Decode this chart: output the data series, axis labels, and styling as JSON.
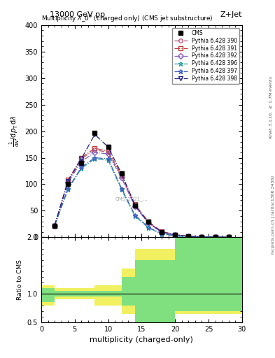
{
  "title_top": "13000 GeV pp",
  "title_right": "Z+Jet",
  "plot_title": "Multiplicity $\\lambda\\_0^0$ (charged only) (CMS jet substructure)",
  "xlabel": "multiplicity (charged-only)",
  "ylabel_main": "$\\frac{1}{\\mathrm{d}N} / \\mathrm{d}p_\\mathrm{T} \\mathrm{d}\\lambda$",
  "ylabel_ratio": "Ratio to CMS",
  "right_label1": "Rivet 3.1.10, $\\geq$ 1.7M events",
  "right_label2": "mcplots.cern.ch | [arXiv:1306.3436]",
  "watermark": "CMS_2021_...",
  "cms_label": "CMS",
  "xlim": [
    0,
    30
  ],
  "ylim_main": [
    0,
    400
  ],
  "ylim_ratio": [
    0.5,
    2.0
  ],
  "x_cms": [
    2,
    4,
    6,
    8,
    10,
    12,
    14,
    16,
    18,
    20,
    22,
    24,
    26,
    28
  ],
  "y_cms": [
    22,
    100,
    140,
    197,
    170,
    120,
    60,
    30,
    10,
    5,
    2,
    1,
    0.5,
    0.2
  ],
  "series": [
    {
      "label": "Pythia 6.428 390",
      "color": "#c06080",
      "marker": "o",
      "linestyle": "-.",
      "x": [
        2,
        4,
        6,
        8,
        10,
        12,
        14,
        16,
        18,
        20,
        22,
        24,
        26,
        28
      ],
      "y": [
        22,
        105,
        148,
        165,
        160,
        115,
        60,
        28,
        10,
        5,
        2,
        1,
        0.5,
        0.2
      ]
    },
    {
      "label": "Pythia 6.428 391",
      "color": "#c04040",
      "marker": "s",
      "linestyle": "-.",
      "x": [
        2,
        4,
        6,
        8,
        10,
        12,
        14,
        16,
        18,
        20,
        22,
        24,
        26,
        28
      ],
      "y": [
        22,
        108,
        150,
        168,
        162,
        118,
        62,
        30,
        11,
        5,
        2,
        1,
        0.5,
        0.2
      ]
    },
    {
      "label": "Pythia 6.428 392",
      "color": "#8060c0",
      "marker": "D",
      "linestyle": "-.",
      "x": [
        2,
        4,
        6,
        8,
        10,
        12,
        14,
        16,
        18,
        20,
        22,
        24,
        26,
        28
      ],
      "y": [
        22,
        103,
        143,
        160,
        157,
        112,
        58,
        27,
        9,
        4,
        1.5,
        0.8,
        0.4,
        0.15
      ]
    },
    {
      "label": "Pythia 6.428 396",
      "color": "#30a0a0",
      "marker": "*",
      "linestyle": "-.",
      "x": [
        2,
        4,
        6,
        8,
        10,
        12,
        14,
        16,
        18,
        20,
        22,
        24,
        26,
        28
      ],
      "y": [
        22,
        90,
        130,
        148,
        145,
        90,
        40,
        18,
        6,
        2.5,
        1,
        0.5,
        0.2,
        0.1
      ]
    },
    {
      "label": "Pythia 6.428 397",
      "color": "#4060c0",
      "marker": "*",
      "linestyle": "-.",
      "x": [
        2,
        4,
        6,
        8,
        10,
        12,
        14,
        16,
        18,
        20,
        22,
        24,
        26,
        28
      ],
      "y": [
        22,
        92,
        132,
        150,
        148,
        92,
        42,
        19,
        7,
        3,
        1.2,
        0.6,
        0.25,
        0.1
      ]
    },
    {
      "label": "Pythia 6.428 398",
      "color": "#202080",
      "marker": "v",
      "linestyle": "-.",
      "x": [
        2,
        4,
        6,
        8,
        10,
        12,
        14,
        16,
        18,
        20,
        22,
        24,
        26,
        28
      ],
      "y": [
        22,
        106,
        148,
        194,
        170,
        120,
        60,
        28,
        10,
        5,
        2,
        1,
        0.5,
        0.2
      ]
    }
  ],
  "ratio_green_x": [
    0,
    2,
    4,
    6,
    8,
    10,
    12,
    14,
    16,
    18,
    20,
    22,
    24,
    26,
    28,
    30
  ],
  "ratio_green_y_lo": [
    0.85,
    0.85,
    0.95,
    0.95,
    0.95,
    0.95,
    0.95,
    0.8,
    0.5,
    0.5,
    0.5,
    0.7,
    0.7,
    0.7,
    0.7,
    0.7
  ],
  "ratio_green_y_hi": [
    1.1,
    1.1,
    1.05,
    1.05,
    1.05,
    1.05,
    1.05,
    1.3,
    1.6,
    1.6,
    1.6,
    2.0,
    2.0,
    2.0,
    2.0,
    2.0
  ],
  "ratio_yellow_x": [
    0,
    2,
    4,
    6,
    8,
    10,
    12,
    14,
    16,
    18,
    20,
    22,
    24,
    26,
    28,
    30
  ],
  "ratio_yellow_y_lo": [
    0.8,
    0.8,
    0.9,
    0.9,
    0.9,
    0.8,
    0.8,
    0.65,
    0.35,
    0.35,
    0.35,
    0.65,
    0.65,
    0.65,
    0.65,
    0.65
  ],
  "ratio_yellow_y_hi": [
    1.15,
    1.15,
    1.1,
    1.1,
    1.1,
    1.15,
    1.15,
    1.45,
    1.8,
    1.8,
    1.8,
    2.1,
    2.1,
    2.1,
    2.1,
    2.1
  ],
  "bg_color": "#ffffff",
  "cms_color": "#444444"
}
